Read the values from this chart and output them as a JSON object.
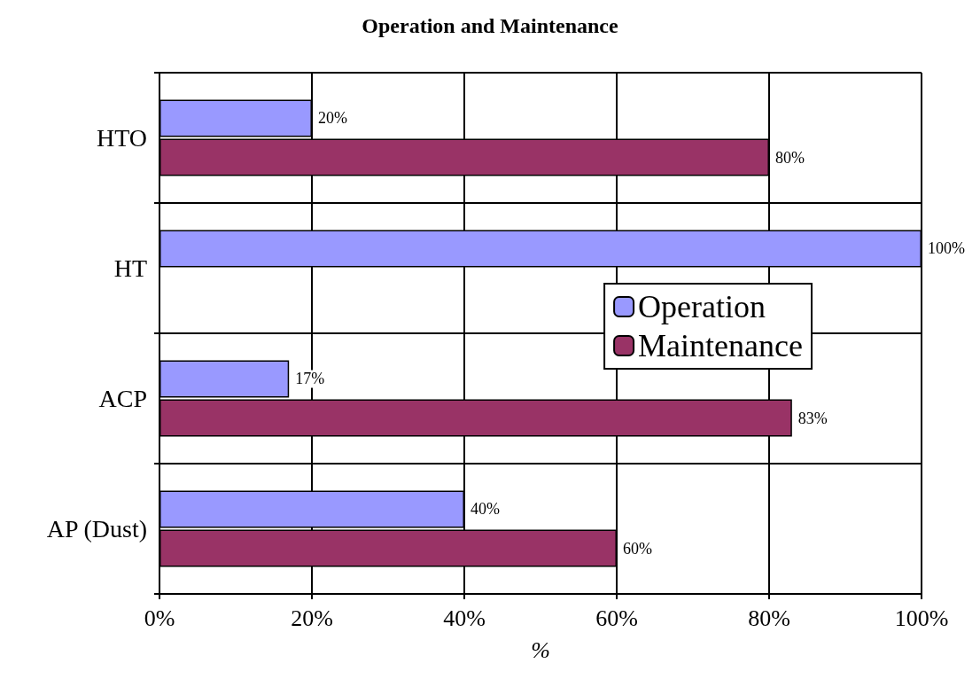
{
  "chart_data": {
    "type": "bar",
    "orientation": "horizontal",
    "title": "Operation and Maintenance",
    "xlabel": "%",
    "categories": [
      "HTO",
      "HT",
      "ACP",
      "AP (Dust)"
    ],
    "series": [
      {
        "name": "Operation",
        "color": "#9999ff",
        "values": [
          20,
          100,
          17,
          40
        ],
        "value_labels": [
          "20%",
          "100%",
          "17%",
          "40%"
        ]
      },
      {
        "name": "Maintenance",
        "color": "#993366",
        "values": [
          80,
          null,
          83,
          60
        ],
        "value_labels": [
          "80%",
          null,
          "83%",
          "60%"
        ]
      }
    ],
    "xlim": [
      0,
      100
    ],
    "xticks": [
      {
        "value": 0,
        "label": "0%"
      },
      {
        "value": 20,
        "label": "20%"
      },
      {
        "value": 40,
        "label": "40%"
      },
      {
        "value": 60,
        "label": "60%"
      },
      {
        "value": 80,
        "label": "80%"
      },
      {
        "value": 100,
        "label": "100%"
      }
    ],
    "grid": true,
    "legend": "right"
  }
}
